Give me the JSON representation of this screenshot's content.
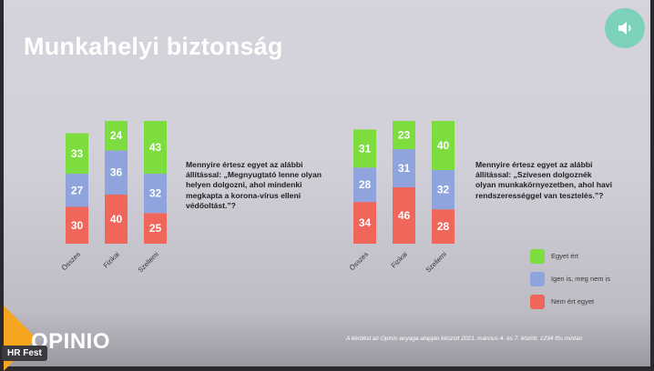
{
  "title": "Munkahelyi biztonság",
  "logo": "OPINIO",
  "footnote": "A kérdést az Opinio anyaga alapján készült 2021. március 4. és 7. között, 1234 fős mintán",
  "badge": "HR Fest",
  "sound_icon": "speaker-icon",
  "colors": {
    "green": "#7ddc3e",
    "blue": "#8fa3dc",
    "red": "#f0665a"
  },
  "legend": [
    {
      "label": "Egyet ért",
      "color": "#7ddc3e"
    },
    {
      "label": "Igen is, meg nem is",
      "color": "#8fa3dc"
    },
    {
      "label": "Nem ért egyet",
      "color": "#f0665a"
    }
  ],
  "questions": [
    "Mennyire értesz egyet az alábbi állítással: „Megnyugtató lenne olyan helyen dolgozni, ahol mindenki megkapta a korona-vírus elleni védőoltást.”?",
    "Mennyire értesz egyet az alábbi állítással: „Szívesen dolgoznék olyan munkakörnyezetben, ahol havi rendszerességgel van tesztelés.”?"
  ],
  "chart_data": [
    {
      "type": "bar",
      "stacked": true,
      "categories": [
        "Összes",
        "Fizikai",
        "Szellemi"
      ],
      "series": [
        {
          "name": "Nem ért egyet",
          "values": [
            30,
            40,
            25
          ]
        },
        {
          "name": "Igen is, meg nem is",
          "values": [
            27,
            36,
            32
          ]
        },
        {
          "name": "Egyet ért",
          "values": [
            33,
            24,
            43
          ]
        }
      ]
    },
    {
      "type": "bar",
      "stacked": true,
      "categories": [
        "Összes",
        "Fizikai",
        "Szellemi"
      ],
      "series": [
        {
          "name": "Nem ért egyet",
          "values": [
            34,
            46,
            28
          ]
        },
        {
          "name": "Igen is, meg nem is",
          "values": [
            28,
            31,
            32
          ]
        },
        {
          "name": "Egyet ért",
          "values": [
            31,
            23,
            40
          ]
        }
      ]
    }
  ]
}
